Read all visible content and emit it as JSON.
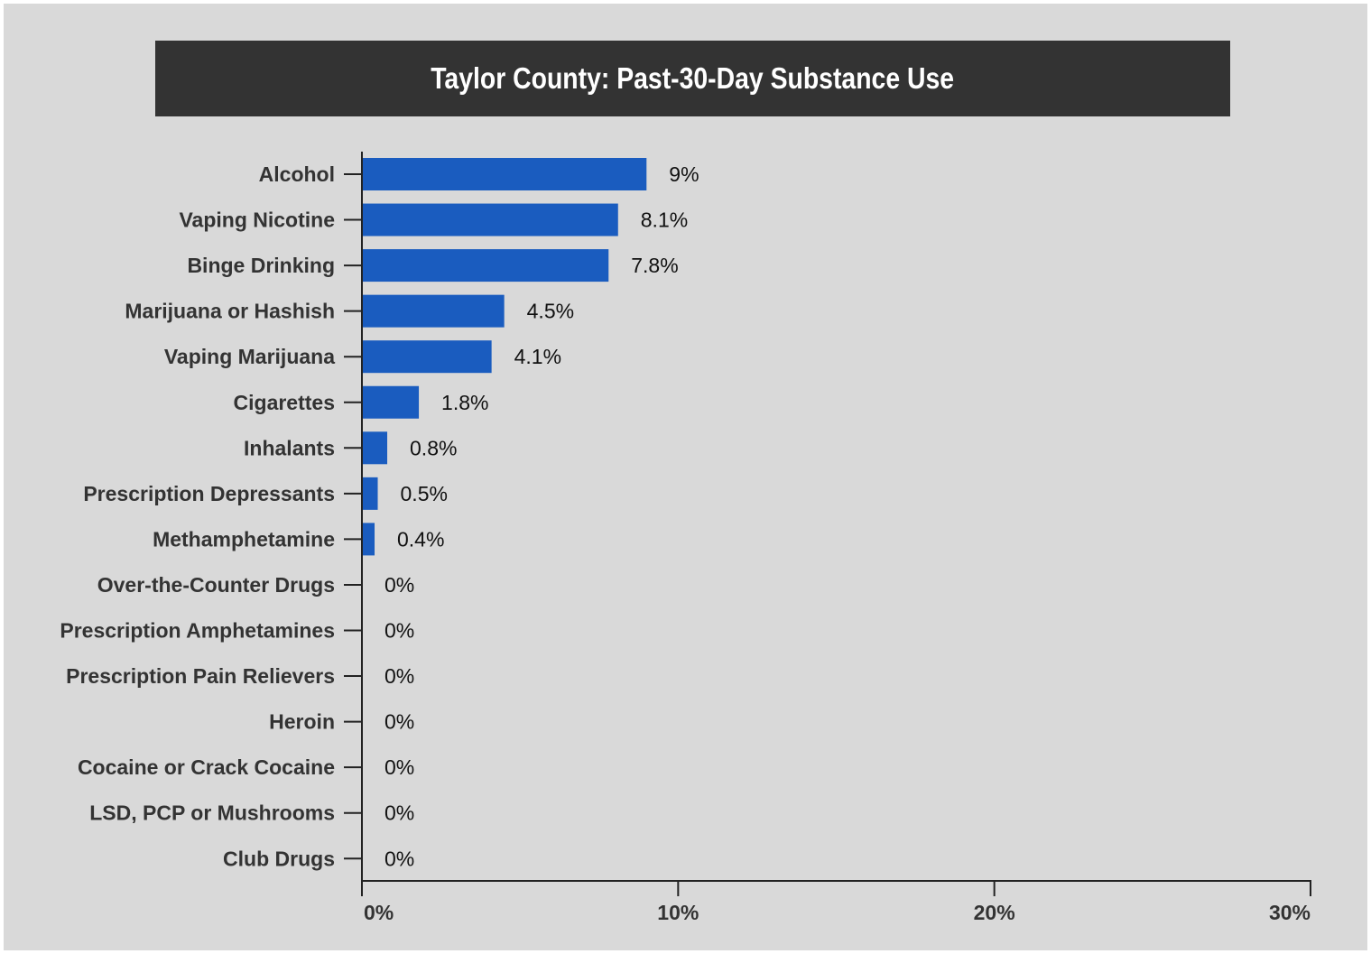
{
  "chart_data": {
    "type": "bar",
    "orientation": "horizontal",
    "title": "Taylor County: Past-30-Day Substance Use",
    "categories": [
      "Alcohol",
      "Vaping Nicotine",
      "Binge Drinking",
      "Marijuana or Hashish",
      "Vaping Marijuana",
      "Cigarettes",
      "Inhalants",
      "Prescription Depressants",
      "Methamphetamine",
      "Over-the-Counter Drugs",
      "Prescription Amphetamines",
      "Prescription Pain Relievers",
      "Heroin",
      "Cocaine or Crack Cocaine",
      "LSD, PCP or Mushrooms",
      "Club Drugs"
    ],
    "values": [
      9,
      8.1,
      7.8,
      4.5,
      4.1,
      1.8,
      0.8,
      0.5,
      0.4,
      0,
      0,
      0,
      0,
      0,
      0,
      0
    ],
    "value_labels": [
      "9%",
      "8.1%",
      "7.8%",
      "4.5%",
      "4.1%",
      "1.8%",
      "0.8%",
      "0.5%",
      "0.4%",
      "0%",
      "0%",
      "0%",
      "0%",
      "0%",
      "0%",
      "0%"
    ],
    "xlim": [
      0,
      30
    ],
    "xticks": [
      0,
      10,
      20,
      30
    ],
    "xtick_labels": [
      "0%",
      "10%",
      "20%",
      "30%"
    ],
    "xlabel": "",
    "ylabel": "",
    "grid": false,
    "colors": {
      "bar": "#1a5cbf",
      "background": "#d9d9d9",
      "title_bar": "#333333",
      "title_text": "#ffffff",
      "axis": "#222222"
    }
  }
}
